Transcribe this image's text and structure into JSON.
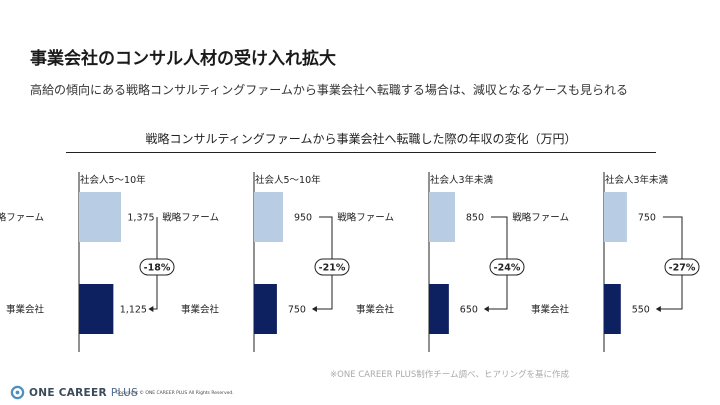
{
  "header": {
    "title": "事業会社のコンサル人材の受け入れ拡大",
    "subtitle": "高給の傾向にある戦略コンサルティングファームから事業会社へ転職する場合は、減収となるケースも見られる"
  },
  "chart_data": {
    "type": "bar",
    "title": "戦略コンサルティングファームから事業会社へ転職した際の年収の変化（万円）",
    "categories": [
      "戦略ファーム",
      "事業会社"
    ],
    "colors": {
      "consulting": "#b8cce4",
      "company": "#0d2160"
    },
    "panels": [
      {
        "group": "社会人5〜10年",
        "values": [
          1375,
          1125
        ],
        "value_labels": [
          "1,375",
          "1,125"
        ],
        "change": "-18%"
      },
      {
        "group": "社会人5〜10年",
        "values": [
          950,
          750
        ],
        "value_labels": [
          "950",
          "750"
        ],
        "change": "-21%"
      },
      {
        "group": "社会人3年未満",
        "values": [
          850,
          650
        ],
        "value_labels": [
          "850",
          "650"
        ],
        "change": "-24%"
      },
      {
        "group": "社会人3年未満",
        "values": [
          750,
          550
        ],
        "value_labels": [
          "750",
          "550"
        ],
        "change": "-27%"
      }
    ],
    "xlim": [
      0,
      1375
    ]
  },
  "footer": {
    "note": "※ONE CAREER PLUS制作チーム調べ、ヒアリングを基に作成",
    "logo_main": "ONE CAREER",
    "logo_sub": "PLUS",
    "copyright": "Copyright © ONE CAREER PLUS All Rights Reserved."
  }
}
